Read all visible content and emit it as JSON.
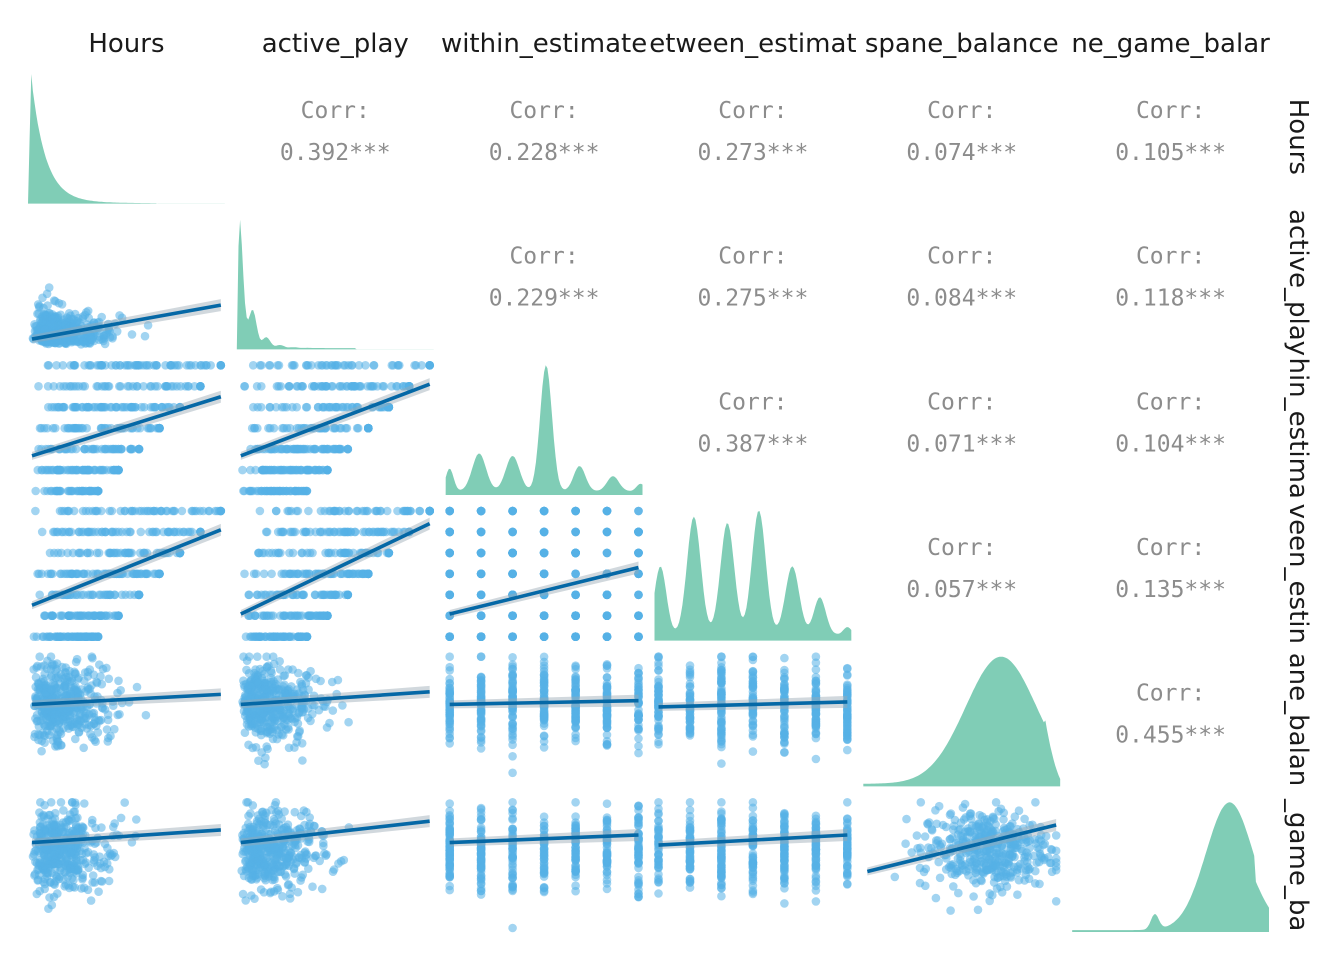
{
  "chart_data": {
    "type": "scatter-matrix",
    "variables": [
      "Hours",
      "active_play",
      "within_estimate",
      "between_estimate",
      "spane_balance",
      "spane_game_balance"
    ],
    "column_labels": [
      "Hours",
      "active_play",
      "within_estimate",
      "etween_estimat",
      "spane_balance",
      "ne_game_balar"
    ],
    "row_labels": [
      "Hours",
      "active_play",
      "hin_estima",
      "veen_estin",
      "ane_balan",
      "_game_ba"
    ],
    "correlation_label": "Corr:",
    "correlations": [
      {
        "row": 0,
        "col": 1,
        "value": "0.392***"
      },
      {
        "row": 0,
        "col": 2,
        "value": "0.228***"
      },
      {
        "row": 0,
        "col": 3,
        "value": "0.273***"
      },
      {
        "row": 0,
        "col": 4,
        "value": "0.074***"
      },
      {
        "row": 0,
        "col": 5,
        "value": "0.105***"
      },
      {
        "row": 1,
        "col": 2,
        "value": "0.229***"
      },
      {
        "row": 1,
        "col": 3,
        "value": "0.275***"
      },
      {
        "row": 1,
        "col": 4,
        "value": "0.084***"
      },
      {
        "row": 1,
        "col": 5,
        "value": "0.118***"
      },
      {
        "row": 2,
        "col": 3,
        "value": "0.387***"
      },
      {
        "row": 2,
        "col": 4,
        "value": "0.071***"
      },
      {
        "row": 2,
        "col": 5,
        "value": "0.104***"
      },
      {
        "row": 3,
        "col": 4,
        "value": "0.057***"
      },
      {
        "row": 3,
        "col": 5,
        "value": "0.135***"
      },
      {
        "row": 4,
        "col": 5,
        "value": "0.455***"
      }
    ],
    "colors": {
      "density": "#80CDB6",
      "points": "#56B1E6",
      "line": "#0568A6",
      "band": "#9AA8B3",
      "text": "#8C8C8C",
      "header": "#1A1A1A"
    }
  }
}
